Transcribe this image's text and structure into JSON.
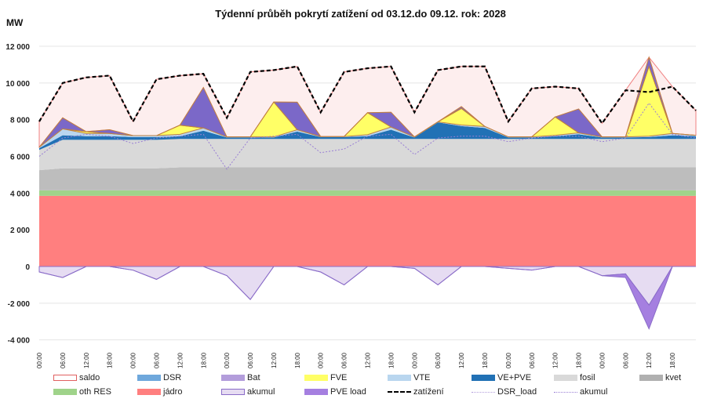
{
  "chart_data": {
    "type": "area",
    "title": "Týdenní průběh pokrytí zatížení od 03.12.do 09.12. rok: 2028",
    "ylabel": "MW",
    "ylim": [
      -4000,
      12000
    ],
    "yticks": [
      -4000,
      -2000,
      0,
      2000,
      4000,
      6000,
      8000,
      10000,
      12000
    ],
    "ytick_labels": [
      "-4 000",
      "-2 000",
      "0",
      "2 000",
      "4 000",
      "6 000",
      "8 000",
      "10 000",
      "12 000"
    ],
    "xtick_labels": [
      "00:00",
      "06:00",
      "12:00",
      "18:00",
      "00:00",
      "06:00",
      "12:00",
      "18:00",
      "00:00",
      "06:00",
      "12:00",
      "18:00",
      "00:00",
      "06:00",
      "12:00",
      "18:00",
      "00:00",
      "06:00",
      "12:00",
      "18:00",
      "00:00",
      "06:00",
      "12:00",
      "18:00",
      "00:00",
      "06:00",
      "12:00",
      "18:00"
    ],
    "x_hours": [
      0,
      6,
      12,
      18,
      24,
      30,
      36,
      42,
      48,
      54,
      60,
      66,
      72,
      78,
      84,
      90,
      96,
      102,
      108,
      114,
      120,
      126,
      132,
      138,
      144,
      150,
      156,
      162,
      168
    ],
    "stack_positive": [
      {
        "name": "jádro",
        "color": "#ff7f7f",
        "values": [
          3850,
          3850,
          3850,
          3850,
          3850,
          3850,
          3850,
          3850,
          3850,
          3850,
          3850,
          3850,
          3850,
          3850,
          3850,
          3850,
          3850,
          3850,
          3850,
          3850,
          3850,
          3850,
          3850,
          3850,
          3850,
          3850,
          3850,
          3850,
          3850
        ]
      },
      {
        "name": "oth RES",
        "color": "#9fd38a",
        "values": [
          300,
          300,
          300,
          300,
          300,
          300,
          300,
          300,
          300,
          300,
          300,
          300,
          300,
          300,
          300,
          300,
          300,
          300,
          300,
          300,
          300,
          300,
          300,
          300,
          300,
          300,
          300,
          300,
          300
        ]
      },
      {
        "name": "kvet",
        "color": "#bdbdbd",
        "values": [
          1100,
          1200,
          1200,
          1200,
          1200,
          1200,
          1250,
          1250,
          1250,
          1250,
          1250,
          1250,
          1250,
          1250,
          1250,
          1250,
          1250,
          1250,
          1250,
          1250,
          1250,
          1250,
          1250,
          1250,
          1250,
          1250,
          1250,
          1250,
          1250
        ]
      },
      {
        "name": "fosil",
        "color": "#d9d9d9",
        "values": [
          1100,
          1550,
          1550,
          1550,
          1550,
          1550,
          1550,
          1550,
          1550,
          1550,
          1550,
          1550,
          1550,
          1550,
          1550,
          1550,
          1550,
          1550,
          1550,
          1550,
          1550,
          1550,
          1550,
          1550,
          1550,
          1550,
          1550,
          1550,
          1550
        ]
      },
      {
        "name": "VE+PVE",
        "color": "#2171b5",
        "values": [
          100,
          250,
          200,
          200,
          150,
          150,
          150,
          450,
          80,
          80,
          80,
          400,
          100,
          100,
          150,
          500,
          80,
          900,
          700,
          600,
          80,
          80,
          150,
          250,
          80,
          80,
          100,
          200,
          150
        ]
      },
      {
        "name": "VTE",
        "color": "#b9d6ef",
        "values": [
          50,
          350,
          150,
          150,
          80,
          80,
          100,
          150,
          30,
          30,
          30,
          100,
          30,
          30,
          80,
          150,
          30,
          30,
          60,
          80,
          30,
          30,
          50,
          80,
          30,
          30,
          50,
          100,
          50
        ]
      },
      {
        "name": "DSR",
        "color": "#6fa8dc",
        "values": [
          0,
          0,
          0,
          0,
          0,
          0,
          0,
          0,
          0,
          0,
          0,
          0,
          0,
          0,
          0,
          0,
          0,
          0,
          0,
          0,
          0,
          0,
          0,
          0,
          0,
          0,
          0,
          0,
          0
        ]
      },
      {
        "name": "FVE",
        "color": "#ffff66",
        "values": [
          0,
          0,
          100,
          0,
          0,
          0,
          500,
          0,
          0,
          0,
          1900,
          0,
          0,
          0,
          1200,
          0,
          0,
          0,
          900,
          0,
          0,
          0,
          1000,
          0,
          0,
          0,
          3800,
          0,
          0
        ]
      },
      {
        "name": "Bat",
        "color": "#7b68c8",
        "values": [
          0,
          600,
          0,
          200,
          0,
          0,
          0,
          2200,
          0,
          0,
          0,
          1500,
          0,
          0,
          0,
          800,
          0,
          0,
          100,
          0,
          0,
          0,
          0,
          1300,
          0,
          0,
          500,
          0,
          0
        ]
      }
    ],
    "stack_negative": [
      {
        "name": "akumul",
        "color": "#e6dcf2",
        "values": [
          -300,
          -600,
          0,
          0,
          -200,
          -700,
          0,
          0,
          -500,
          -1800,
          0,
          0,
          -300,
          -1000,
          0,
          0,
          -100,
          -1000,
          0,
          0,
          -100,
          -200,
          0,
          0,
          -500,
          -400,
          -2100,
          0,
          0
        ]
      },
      {
        "name": "PVE load",
        "color": "#a57fe0",
        "values": [
          0,
          0,
          0,
          0,
          0,
          0,
          0,
          0,
          0,
          0,
          0,
          0,
          0,
          0,
          0,
          0,
          0,
          0,
          0,
          0,
          0,
          0,
          0,
          0,
          0,
          -200,
          -1300,
          0,
          0
        ]
      }
    ],
    "lines": [
      {
        "name": "zatížení",
        "color": "#000000",
        "style": "dash",
        "values": [
          7900,
          10000,
          10300,
          10400,
          7900,
          10200,
          10400,
          10500,
          8100,
          10600,
          10700,
          10900,
          8400,
          10600,
          10800,
          10900,
          8400,
          10700,
          10900,
          10900,
          7900,
          9700,
          9800,
          9700,
          7800,
          9600,
          9500,
          9800,
          8500
        ]
      },
      {
        "name": "DSR_load",
        "color": "#9a7fd4",
        "style": "dot",
        "values": [
          6000,
          7000,
          7200,
          7100,
          6700,
          7000,
          7100,
          7200,
          5300,
          7000,
          7100,
          7200,
          6200,
          6400,
          7100,
          7200,
          6100,
          7000,
          7100,
          7100,
          6800,
          7000,
          7100,
          7100,
          6800,
          7000,
          8900,
          7200,
          7000
        ]
      }
    ],
    "fill_to_load": {
      "name": "saldo",
      "color": "#fdeeee",
      "border": "#f08080"
    },
    "legend_position": "bottom",
    "legend": [
      {
        "label": "saldo",
        "color": "#ffffff",
        "border": "#e06060",
        "kind": "box"
      },
      {
        "label": "DSR",
        "color": "#6fa8dc",
        "kind": "box"
      },
      {
        "label": "Bat",
        "color": "#b39ddb",
        "kind": "box"
      },
      {
        "label": "FVE",
        "color": "#ffff66",
        "kind": "box"
      },
      {
        "label": "VTE",
        "color": "#b9d6ef",
        "kind": "box"
      },
      {
        "label": "VE+PVE",
        "color": "#2171b5",
        "kind": "box"
      },
      {
        "label": "fosil",
        "color": "#d9d9d9",
        "kind": "box"
      },
      {
        "label": "kvet",
        "color": "#b0b0b0",
        "kind": "box"
      },
      {
        "label": "oth RES",
        "color": "#9fd38a",
        "kind": "box"
      },
      {
        "label": "jádro",
        "color": "#ff7f7f",
        "kind": "box"
      },
      {
        "label": "akumul",
        "color": "#e6dcf2",
        "border": "#8a6cc8",
        "kind": "box"
      },
      {
        "label": "PVE load",
        "color": "#a57fe0",
        "kind": "box"
      },
      {
        "label": "zatížení",
        "color": "#000000",
        "kind": "dash"
      },
      {
        "label": "DSR_load",
        "color": "#b39ddb",
        "kind": "dot"
      },
      {
        "label": "akumul",
        "color": "#9a7fd4",
        "kind": "dot"
      }
    ]
  }
}
